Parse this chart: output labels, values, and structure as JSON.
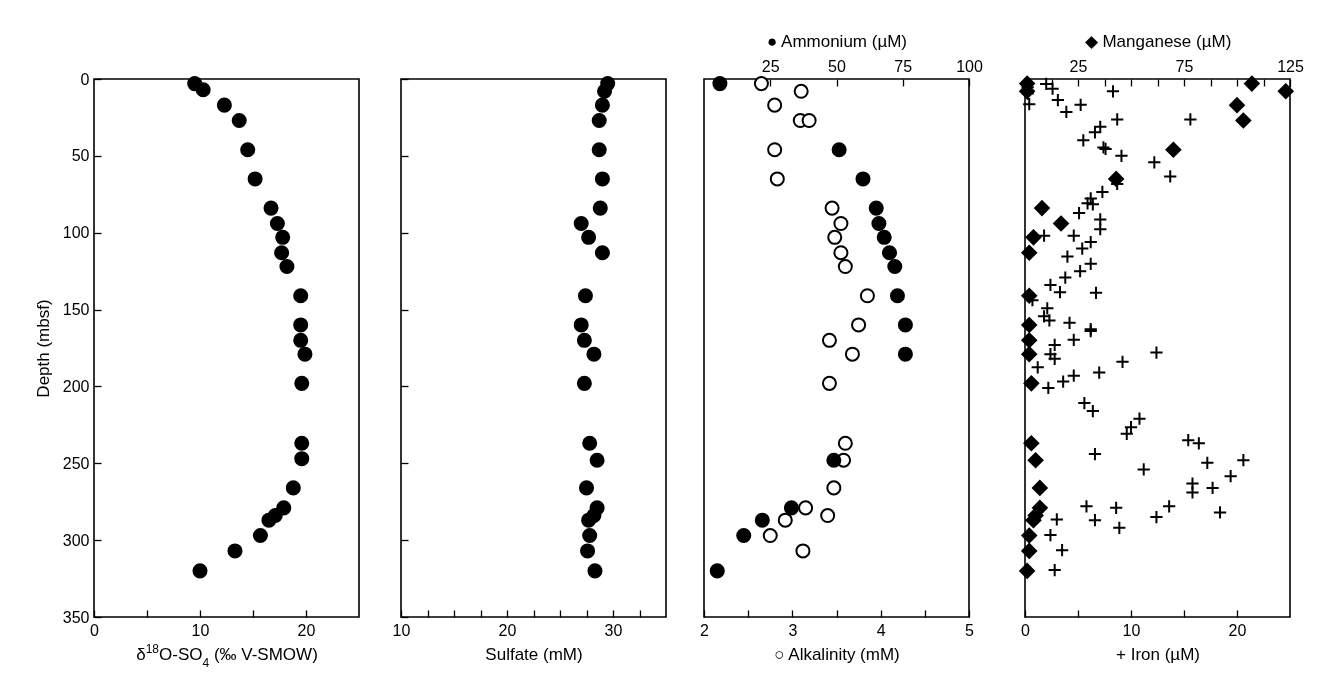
{
  "chart_data": [
    {
      "type": "scatter",
      "xlabel": "δ$^{18}$O-SO$_{4}$ (‰ V-SMOW)",
      "ylabel": "Depth (mbsf)",
      "marker": "circle",
      "grid": false,
      "xlim": [
        0,
        25
      ],
      "xticks": [
        0,
        {
          "value": 5,
          "label": null
        },
        10,
        {
          "value": 15,
          "label": null
        },
        20
      ],
      "ylim": [
        350,
        0
      ],
      "yticks": [
        0,
        50,
        100,
        150,
        200,
        250,
        300,
        350
      ],
      "series": [
        {
          "color": "#000000",
          "x": [
            9.5,
            10.3,
            12.3,
            13.7,
            14.5,
            15.2,
            16.7,
            17.3,
            17.8,
            17.7,
            18.2,
            19.5,
            19.5,
            19.5,
            19.9,
            19.6,
            19.6,
            19.6,
            18.8,
            17.9,
            17.1,
            16.5,
            15.7,
            13.3,
            10.0
          ],
          "values": [
            3,
            7,
            17,
            27,
            46,
            65,
            84,
            94,
            103,
            113,
            122,
            141,
            160,
            170,
            179,
            198,
            237,
            247,
            266,
            279,
            284,
            287,
            297,
            307,
            320
          ]
        }
      ]
    },
    {
      "type": "scatter",
      "xlabel": "Sulfate (mM)",
      "marker": "circle",
      "grid": false,
      "tick_labels": "x",
      "xlim": [
        10,
        35
      ],
      "xticks": [
        10,
        {
          "value": 12.5,
          "label": null
        },
        {
          "value": 15,
          "label": null
        },
        {
          "value": 17.5,
          "label": null
        },
        20,
        {
          "value": 22.5,
          "label": null
        },
        {
          "value": 25,
          "label": null
        },
        {
          "value": 27.5,
          "label": null
        },
        30,
        {
          "value": 32.5,
          "label": null
        }
      ],
      "ylim": [
        350,
        0
      ],
      "yticks": [
        0,
        50,
        100,
        150,
        200,
        250,
        300,
        350
      ],
      "series": [
        {
          "color": "#000000",
          "x": [
            29.5,
            29.2,
            29.0,
            28.7,
            28.7,
            29.0,
            28.8,
            27.0,
            27.7,
            29.0,
            27.4,
            27.0,
            27.3,
            28.2,
            27.3,
            27.8,
            28.5,
            27.5,
            28.5,
            28.2,
            27.7,
            27.8,
            27.6,
            28.3
          ],
          "values": [
            3,
            8,
            17,
            27,
            46,
            65,
            84,
            94,
            103,
            113,
            141,
            160,
            170,
            179,
            198,
            237,
            248,
            266,
            279,
            284,
            287,
            297,
            307,
            320
          ]
        }
      ]
    },
    {
      "type": "scatter",
      "xlabel": "○ Alkalinity (mM)",
      "x2label": "● Ammonium (µM)",
      "grid": false,
      "tick_labels": "x",
      "xlim": [
        2,
        5
      ],
      "xticks": [
        2,
        {
          "value": 2.5,
          "label": null
        },
        3,
        {
          "value": 3.5,
          "label": null
        },
        4,
        {
          "value": 4.5,
          "label": null
        },
        5
      ],
      "x2lim": [
        0,
        100
      ],
      "x2ticks": [
        25,
        50,
        75,
        100
      ],
      "ylim": [
        350,
        0
      ],
      "yticks": [
        0,
        50,
        100,
        150,
        200,
        250,
        300,
        350
      ],
      "series": [
        {
          "color": "#ffffff",
          "marker": "circle",
          "x": [
            2.65,
            3.1,
            2.8,
            3.09,
            3.19,
            2.8,
            2.83,
            3.45,
            3.55,
            3.48,
            3.55,
            3.6,
            3.85,
            3.75,
            3.42,
            3.68,
            3.42,
            3.6,
            3.58,
            3.47,
            3.15,
            3.4,
            2.92,
            2.75,
            3.12
          ],
          "values": [
            3,
            8,
            17,
            27,
            27,
            46,
            65,
            84,
            94,
            103,
            113,
            122,
            141,
            160,
            170,
            179,
            198,
            237,
            248,
            266,
            279,
            284,
            287,
            297,
            307
          ]
        },
        {
          "color": "#000000",
          "marker": "circle",
          "axis": "x2",
          "x": [
            6,
            51,
            60,
            65,
            66,
            68,
            70,
            72,
            73,
            76,
            76,
            49,
            33,
            22,
            15,
            5
          ],
          "values": [
            3,
            46,
            65,
            84,
            94,
            103,
            113,
            122,
            141,
            160,
            179,
            248,
            279,
            287,
            297,
            320
          ]
        }
      ]
    },
    {
      "type": "scatter",
      "xlabel": "+ Iron (µM)",
      "x2label": "◆ Manganese (µM)",
      "grid": false,
      "tick_labels": "x",
      "xlim": [
        0,
        25
      ],
      "xticks": [
        0,
        {
          "value": 5,
          "label": null
        },
        10,
        {
          "value": 15,
          "label": null
        },
        20
      ],
      "x2lim": [
        0,
        125
      ],
      "x2ticks": [
        {
          "value": 12.5,
          "label": null
        },
        25,
        {
          "value": 37.5,
          "label": null
        },
        {
          "value": 50,
          "label": null
        },
        {
          "value": 62.5,
          "label": null
        },
        75,
        {
          "value": 87.5,
          "label": null
        },
        {
          "value": 100,
          "label": null
        },
        {
          "value": 112.5,
          "label": null
        },
        125
      ],
      "ylim": [
        350,
        0
      ],
      "yticks": [
        0,
        50,
        100,
        150,
        200,
        250,
        300,
        350
      ],
      "series": [
        {
          "color": "#000000",
          "marker": "cross",
          "x": [
            2.0,
            2.6,
            0.25,
            0.25,
            0.4,
            3.1,
            3.9,
            5.25,
            8.3,
            8.7,
            15.6,
            7.1,
            6.6,
            5.5,
            7.4,
            7.6,
            9.1,
            12.2,
            13.7,
            8.7,
            7.3,
            6.2,
            5.9,
            6.4,
            5.1,
            7.1,
            7.1,
            1.8,
            4.6,
            6.2,
            5.4,
            4.0,
            6.2,
            5.2,
            3.8,
            2.4,
            3.3,
            6.7,
            0.7,
            2.1,
            1.8,
            2.3,
            4.2,
            6.2,
            6.2,
            4.6,
            2.8,
            12.4,
            2.4,
            2.8,
            1.2,
            9.2,
            7.0,
            4.6,
            3.6,
            2.2,
            5.6,
            6.4,
            10.8,
            10.0,
            9.6,
            15.4,
            16.4,
            6.6,
            20.6,
            17.2,
            11.2,
            19.4,
            15.8,
            17.7,
            15.8,
            13.6,
            5.8,
            8.6,
            18.4,
            12.4,
            3.0,
            6.6,
            8.9,
            2.4,
            3.5,
            2.8
          ],
          "values": [
            3.2,
            6.3,
            5.3,
            9.5,
            16.4,
            13.7,
            21.4,
            16.8,
            8,
            26.3,
            26.3,
            31.1,
            34.7,
            39.9,
            44.5,
            45.5,
            50,
            54.2,
            63.4,
            68.3,
            73.5,
            77.7,
            80.9,
            81.5,
            87.2,
            91.4,
            97.7,
            101.9,
            101.9,
            106.1,
            110.3,
            115.5,
            120.2,
            125,
            129.2,
            134,
            138.7,
            139.1,
            143.9,
            149.2,
            154.4,
            157.1,
            158.6,
            162.8,
            164,
            169.7,
            173,
            178,
            179,
            182,
            187.6,
            184,
            191,
            193,
            196.8,
            201,
            210.8,
            216,
            221,
            226.5,
            230.8,
            235,
            237,
            244,
            248,
            249.7,
            254,
            258.4,
            263.2,
            266,
            269,
            278,
            278,
            279,
            282,
            285,
            286.5,
            287,
            292,
            296.7,
            306.5,
            319.5
          ]
        },
        {
          "color": "#000000",
          "marker": "diamond",
          "axis": "x2",
          "x": [
            1,
            1,
            107,
            123,
            100,
            103,
            70,
            43,
            8,
            17,
            4,
            2,
            2,
            2,
            2,
            2,
            3,
            3,
            5,
            7,
            7,
            5,
            4,
            2,
            2,
            1
          ],
          "values": [
            3,
            8,
            3,
            8,
            17,
            27,
            46,
            65,
            84,
            94,
            103,
            113,
            141,
            160,
            170,
            179,
            198,
            237,
            248,
            266,
            279,
            284,
            287,
            297,
            307,
            320
          ]
        }
      ]
    }
  ]
}
